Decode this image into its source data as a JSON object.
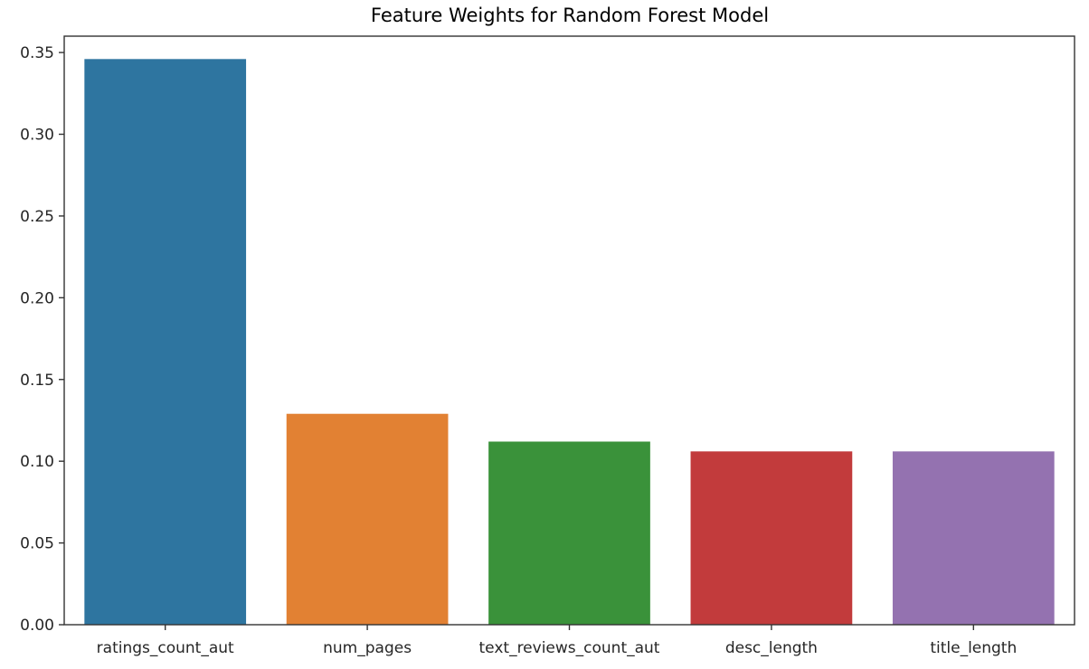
{
  "chart_data": {
    "type": "bar",
    "title": "Feature Weights for Random Forest Model",
    "xlabel": "",
    "ylabel": "",
    "categories": [
      "ratings_count_aut",
      "num_pages",
      "text_reviews_count_aut",
      "desc_length",
      "title_length"
    ],
    "values": [
      0.346,
      0.129,
      0.112,
      0.106,
      0.106
    ],
    "colors": [
      "#2e75a0",
      "#e28133",
      "#3a923a",
      "#c23b3c",
      "#9472b0"
    ],
    "ylim": [
      0,
      0.36
    ],
    "yticks": [
      0.0,
      0.05,
      0.1,
      0.15,
      0.2,
      0.25,
      0.3,
      0.35
    ],
    "ytick_labels": [
      "0.00",
      "0.05",
      "0.10",
      "0.15",
      "0.20",
      "0.25",
      "0.30",
      "0.35"
    ],
    "grid": false,
    "legend": "none"
  }
}
